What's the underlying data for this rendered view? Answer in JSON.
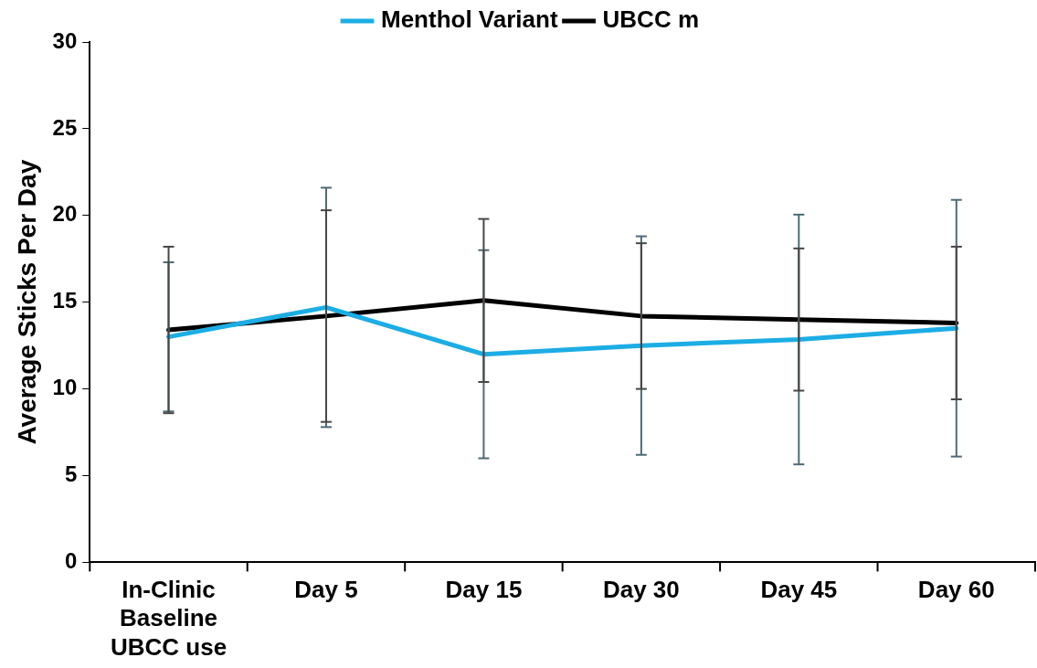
{
  "chart_data": {
    "type": "line",
    "ylabel": "Average Sticks Per Day",
    "categories": [
      "In-Clinic\nBaseline\nUBCC use",
      "Day 5",
      "Day 15",
      "Day 30",
      "Day 45",
      "Day 60"
    ],
    "series": [
      {
        "name": "Menthol Variant",
        "color": "#1cade4",
        "values": [
          13.0,
          14.7,
          12.0,
          12.5,
          12.85,
          13.5
        ],
        "errors": [
          4.3,
          6.9,
          6.0,
          6.3,
          7.2,
          7.4
        ]
      },
      {
        "name": "UBCC m",
        "color": "#000000",
        "values": [
          13.4,
          14.2,
          15.1,
          14.2,
          14.0,
          13.8
        ],
        "errors": [
          4.8,
          6.1,
          4.7,
          4.2,
          4.1,
          4.4
        ]
      }
    ],
    "ylim": [
      0,
      30
    ],
    "yticks": [
      0,
      5,
      10,
      15,
      20,
      25,
      30
    ],
    "grid": false,
    "legend": "top",
    "marker": "none",
    "line_style": "solid"
  }
}
